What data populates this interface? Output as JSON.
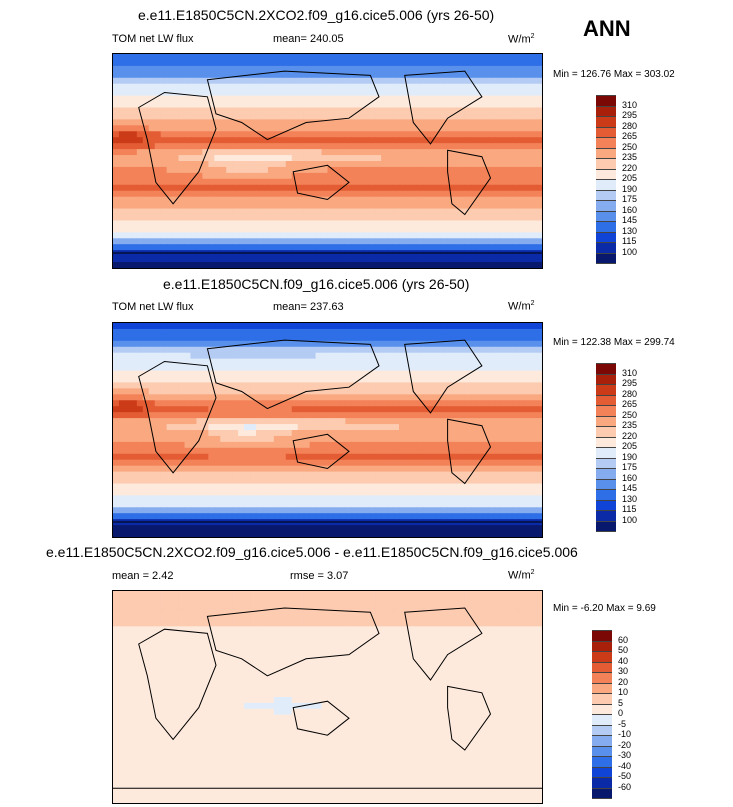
{
  "season": "ANN",
  "colors": {
    "abs": [
      "#08196d",
      "#0b2aa8",
      "#0f44d6",
      "#2e6ee6",
      "#5890ec",
      "#86acf0",
      "#b4ccf4",
      "#e0ecfa",
      "#fdeadd",
      "#fccbb0",
      "#f9a880",
      "#f38258",
      "#e45c33",
      "#cc3b17",
      "#a8200a",
      "#7c0806"
    ],
    "diff": [
      "#08196d",
      "#0b2aa8",
      "#0f44d6",
      "#2e6ee6",
      "#5890ec",
      "#86acf0",
      "#b4ccf4",
      "#e0ecfa",
      "#fdeadd",
      "#fccbb0",
      "#f9a880",
      "#f38258",
      "#e45c33",
      "#cc3b17",
      "#a8200a",
      "#7c0806"
    ]
  },
  "panels": [
    {
      "title": "e.e11.E1850C5CN.2XCO2.f09_g16.cice5.006 (yrs 26-50)",
      "left_label": "TOM net LW flux",
      "stat_label": "mean= 240.05",
      "units": "W/m",
      "units_sup": "2",
      "min_max": "Min = 126.76 Max = 303.02",
      "levels": [
        "310",
        "295",
        "280",
        "265",
        "250",
        "235",
        "220",
        "205",
        "190",
        "175",
        "160",
        "145",
        "130",
        "115",
        "100"
      ]
    },
    {
      "title": "e.e11.E1850C5CN.f09_g16.cice5.006 (yrs 26-50)",
      "left_label": "TOM net LW flux",
      "stat_label": "mean= 237.63",
      "units": "W/m",
      "units_sup": "2",
      "min_max": "Min = 122.38 Max = 299.74",
      "levels": [
        "310",
        "295",
        "280",
        "265",
        "250",
        "235",
        "220",
        "205",
        "190",
        "175",
        "160",
        "145",
        "130",
        "115",
        "100"
      ]
    },
    {
      "title": "e.e11.E1850C5CN.2XCO2.f09_g16.cice5.006 - e.e11.E1850C5CN.f09_g16.cice5.006",
      "left_label": "mean =   2.42",
      "stat_label": "rmse =   3.07",
      "units": "W/m",
      "units_sup": "2",
      "min_max": "Min =  -6.20 Max =   9.69",
      "levels": [
        "60",
        "50",
        "40",
        "30",
        "20",
        "10",
        "5",
        "0",
        "-5",
        "-10",
        "-20",
        "-30",
        "-40",
        "-50",
        "-60"
      ]
    }
  ],
  "chart_data": [
    {
      "type": "heatmap",
      "title": "e.e11.E1850C5CN.2XCO2.f09_g16.cice5.006 (yrs 26-50)",
      "variable": "TOM net LW flux",
      "units": "W/m2",
      "mean": 240.05,
      "min": 126.76,
      "max": 303.02,
      "contour_levels": [
        100,
        115,
        130,
        145,
        160,
        175,
        190,
        205,
        220,
        235,
        250,
        265,
        280,
        295,
        310
      ]
    },
    {
      "type": "heatmap",
      "title": "e.e11.E1850C5CN.f09_g16.cice5.006 (yrs 26-50)",
      "variable": "TOM net LW flux",
      "units": "W/m2",
      "mean": 237.63,
      "min": 122.38,
      "max": 299.74,
      "contour_levels": [
        100,
        115,
        130,
        145,
        160,
        175,
        190,
        205,
        220,
        235,
        250,
        265,
        280,
        295,
        310
      ]
    },
    {
      "type": "heatmap",
      "title": "e.e11.E1850C5CN.2XCO2.f09_g16.cice5.006 - e.e11.E1850C5CN.f09_g16.cice5.006",
      "units": "W/m2",
      "mean": 2.42,
      "rmse": 3.07,
      "min": -6.2,
      "max": 9.69,
      "contour_levels": [
        -60,
        -50,
        -40,
        -30,
        -20,
        -10,
        -5,
        0,
        5,
        10,
        20,
        30,
        40,
        50,
        60
      ]
    }
  ]
}
